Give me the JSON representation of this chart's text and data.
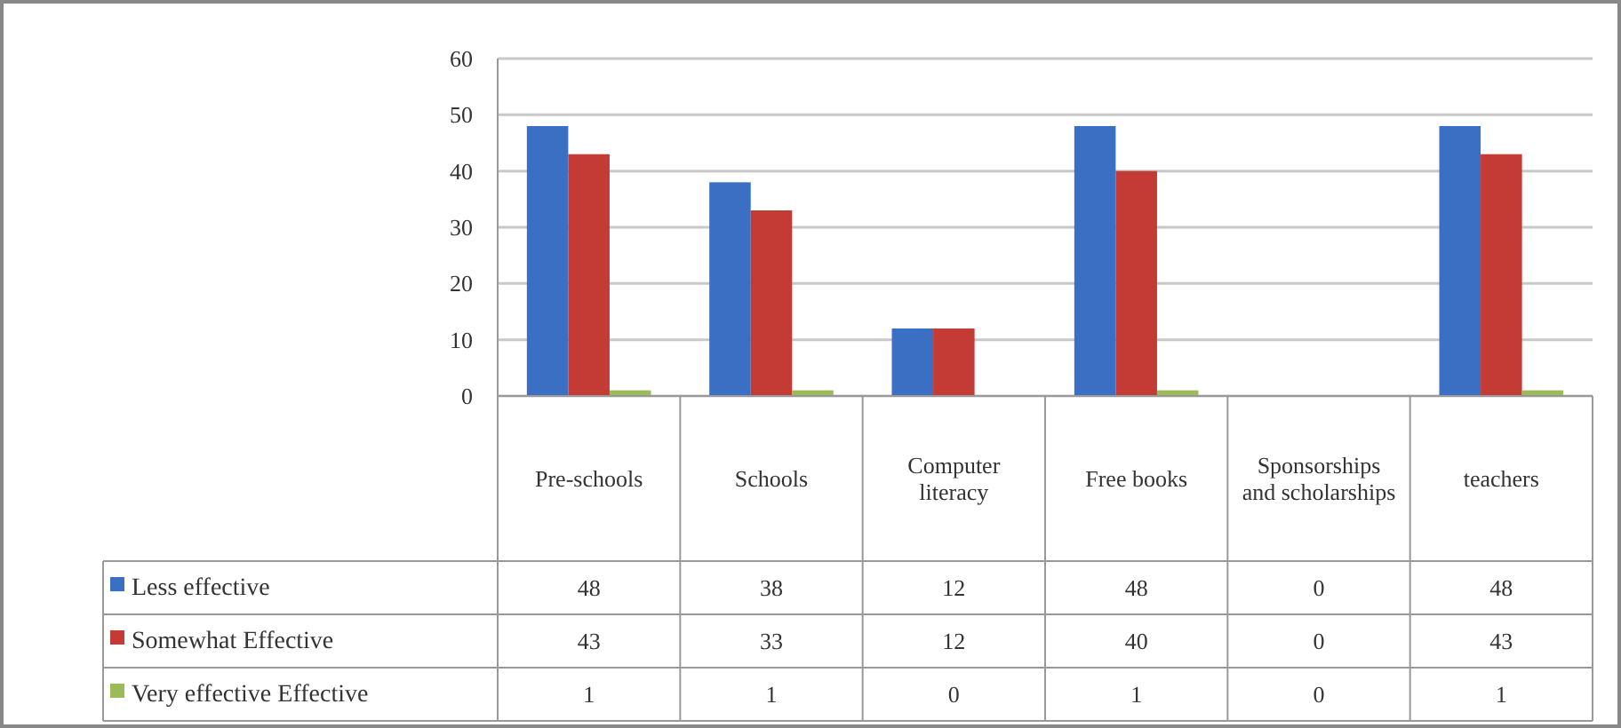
{
  "chart_data": {
    "type": "bar",
    "categories": [
      "Pre-schools",
      "Schools",
      "Computer literacy",
      "Free books",
      "Sponsorships and scholarships",
      "teachers"
    ],
    "series": [
      {
        "name": "Less effective",
        "color": "#3a6fc4",
        "values": [
          48,
          38,
          12,
          48,
          0,
          48
        ]
      },
      {
        "name": "Somewhat  Effective",
        "color": "#c43a34",
        "values": [
          43,
          33,
          12,
          40,
          0,
          43
        ]
      },
      {
        "name": "Very effective Effective",
        "color": "#9bbb59",
        "values": [
          1,
          1,
          0,
          1,
          0,
          1
        ]
      }
    ],
    "ylim": [
      0,
      60
    ],
    "yticks": [
      0,
      10,
      20,
      30,
      40,
      50,
      60
    ],
    "grid": "y",
    "data_labels": true,
    "legend": "bottom left"
  }
}
